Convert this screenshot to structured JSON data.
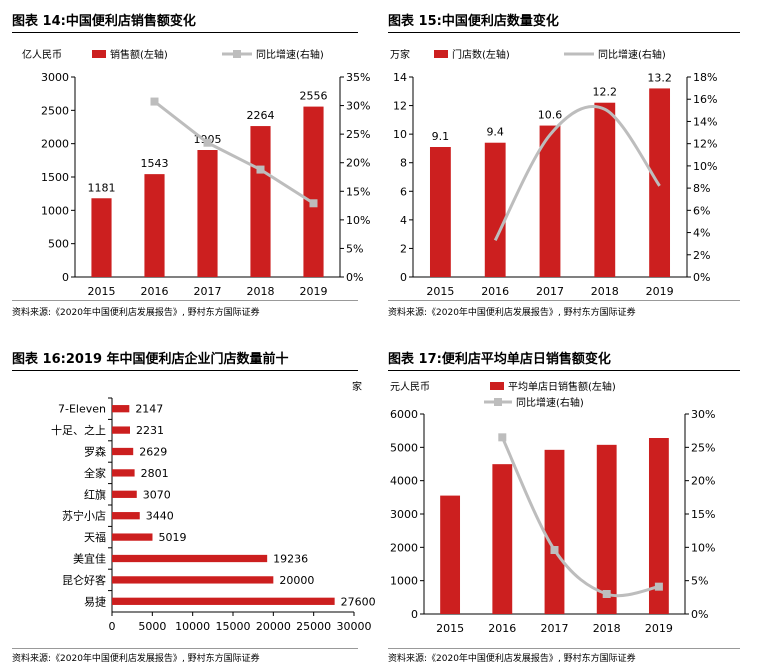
{
  "colors": {
    "bar": "#cc1f1f",
    "line": "#bdbdbd",
    "axis": "#000000"
  },
  "source_text": "资料来源:《2020年中国便利店发展报告》, 野村东方国际证券",
  "panels": [
    {
      "title": "图表 14:中国便利店销售额变化",
      "left_unit": "亿人民币",
      "legend": [
        "销售额(左轴)",
        "同比增速(右轴)"
      ],
      "legend_rows": 1
    },
    {
      "title": "图表 15:中国便利店数量变化",
      "left_unit": "万家",
      "legend": [
        "门店数(左轴)",
        "同比增速(右轴)"
      ],
      "legend_rows": 1
    },
    {
      "title": "图表 16:2019 年中国便利店企业门店数量前十",
      "right_unit": "家"
    },
    {
      "title": "图表 17:便利店平均单店日销售额变化",
      "left_unit": "元人民币",
      "legend": [
        "平均单店日销售额(左轴)",
        "同比增速(右轴)"
      ],
      "legend_rows": 2
    }
  ],
  "chart_data": [
    {
      "type": "bar",
      "title": "图表 14:中国便利店销售额变化",
      "categories": [
        "2015",
        "2016",
        "2017",
        "2018",
        "2019"
      ],
      "series": [
        {
          "name": "销售额(左轴)",
          "type": "bar",
          "axis": "left",
          "values": [
            1181,
            1543,
            1905,
            2264,
            2556
          ],
          "labels": [
            "1181",
            "1543",
            "1905",
            "2264",
            "2556"
          ]
        },
        {
          "name": "同比增速(右轴)",
          "type": "line",
          "axis": "right",
          "values": [
            null,
            30.7,
            23.5,
            18.8,
            12.9
          ]
        }
      ],
      "ylim": [
        0,
        3000
      ],
      "yticks": [
        "0",
        "500",
        "1000",
        "1500",
        "2000",
        "2500",
        "3000"
      ],
      "y2lim": [
        0,
        35
      ],
      "y2ticks": [
        "0%",
        "5%",
        "10%",
        "15%",
        "20%",
        "25%",
        "30%",
        "35%"
      ],
      "smooth": false,
      "markers": true
    },
    {
      "type": "bar",
      "title": "图表 15:中国便利店数量变化",
      "categories": [
        "2015",
        "2016",
        "2017",
        "2018",
        "2019"
      ],
      "series": [
        {
          "name": "门店数(左轴)",
          "type": "bar",
          "axis": "left",
          "values": [
            9.1,
            9.4,
            10.6,
            12.2,
            13.2
          ],
          "labels": [
            "9.1",
            "9.4",
            "10.6",
            "12.2",
            "13.2"
          ]
        },
        {
          "name": "同比增速(右轴)",
          "type": "line",
          "axis": "right",
          "values": [
            null,
            3.3,
            12.8,
            15.1,
            8.2
          ]
        }
      ],
      "ylim": [
        0,
        14
      ],
      "yticks": [
        "0",
        "2",
        "4",
        "6",
        "8",
        "10",
        "12",
        "14"
      ],
      "y2lim": [
        0,
        18
      ],
      "y2ticks": [
        "0%",
        "2%",
        "4%",
        "6%",
        "8%",
        "10%",
        "12%",
        "14%",
        "16%",
        "18%"
      ],
      "smooth": true,
      "markers": false
    },
    {
      "type": "hbar",
      "title": "图表 16:2019 年中国便利店企业门店数量前十",
      "categories": [
        "7-Eleven",
        "十足、之上",
        "罗森",
        "全家",
        "红旗",
        "苏宁小店",
        "天福",
        "美宜佳",
        "昆仑好客",
        "易捷"
      ],
      "values": [
        2147,
        2231,
        2629,
        2801,
        3070,
        3440,
        5019,
        19236,
        20000,
        27600
      ],
      "labels": [
        "2147",
        "2231",
        "2629",
        "2801",
        "3070",
        "3440",
        "5019",
        "19236",
        "20000",
        "27600"
      ],
      "xlim": [
        0,
        30000
      ],
      "xticks": [
        "0",
        "5000",
        "10000",
        "15000",
        "20000",
        "25000",
        "30000"
      ]
    },
    {
      "type": "bar",
      "title": "图表 17:便利店平均单店日销售额变化",
      "categories": [
        "2015",
        "2016",
        "2017",
        "2018",
        "2019"
      ],
      "series": [
        {
          "name": "平均单店日销售额(左轴)",
          "type": "bar",
          "axis": "left",
          "values": [
            3552,
            4495,
            4925,
            5075,
            5280
          ]
        },
        {
          "name": "同比增速(右轴)",
          "type": "line",
          "axis": "right",
          "values": [
            null,
            26.5,
            9.6,
            3.0,
            4.1
          ]
        }
      ],
      "ylim": [
        0,
        6000
      ],
      "yticks": [
        "0",
        "1000",
        "2000",
        "3000",
        "4000",
        "5000",
        "6000"
      ],
      "y2lim": [
        0,
        30
      ],
      "y2ticks": [
        "0%",
        "5%",
        "10%",
        "15%",
        "20%",
        "25%",
        "30%"
      ],
      "smooth": true,
      "markers": true
    }
  ]
}
